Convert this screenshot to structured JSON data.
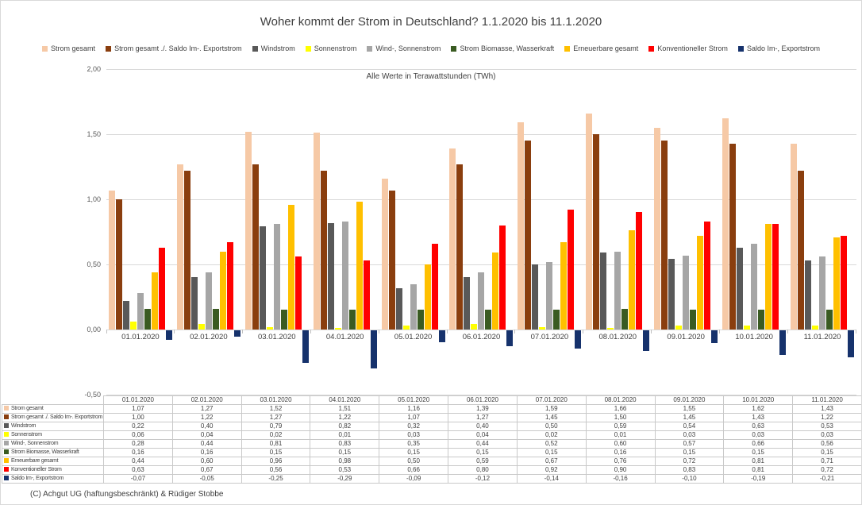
{
  "title": "Woher kommt der Strom in Deutschland? 1.1.2020 bis 11.1.2020",
  "subtitle": "Alle Werte in Terawattstunden (TWh)",
  "footer": "(C) Achgut UG (haftungsbeschränkt) & Rüdiger Stobbe",
  "chart_data": {
    "type": "bar",
    "title": "Woher kommt der Strom in Deutschland? 1.1.2020 bis 11.1.2020",
    "subtitle": "Alle Werte in Terawattstunden (TWh)",
    "unit": "TWh",
    "grid": true,
    "legend_position": "top",
    "data_table_shown": true,
    "ylim": [
      -0.5,
      2.0
    ],
    "ytick_labels": [
      "2,00",
      "1,50",
      "1,00",
      "0,50",
      "0,00",
      "-0,50"
    ],
    "categories": [
      "01.01.2020",
      "02.01.2020",
      "03.01.2020",
      "04.01.2020",
      "05.01.2020",
      "06.01.2020",
      "07.01.2020",
      "08.01.2020",
      "09.01.2020",
      "10.01.2020",
      "11.01.2020"
    ],
    "series": [
      {
        "name": "Strom gesamt",
        "color": "#F6C9A6",
        "values": [
          1.07,
          1.27,
          1.52,
          1.51,
          1.16,
          1.39,
          1.59,
          1.66,
          1.55,
          1.62,
          1.43
        ]
      },
      {
        "name": "Strom gesamt ./. Saldo Im-. Exportstrom",
        "color": "#8A3E0E",
        "values": [
          1.0,
          1.22,
          1.27,
          1.22,
          1.07,
          1.27,
          1.45,
          1.5,
          1.45,
          1.43,
          1.22
        ]
      },
      {
        "name": "Windstrom",
        "color": "#595959",
        "values": [
          0.22,
          0.4,
          0.79,
          0.82,
          0.32,
          0.4,
          0.5,
          0.59,
          0.54,
          0.63,
          0.53
        ]
      },
      {
        "name": "Sonnenstrom",
        "color": "#FFFF00",
        "values": [
          0.06,
          0.04,
          0.02,
          0.01,
          0.03,
          0.04,
          0.02,
          0.01,
          0.03,
          0.03,
          0.03
        ]
      },
      {
        "name": "Wind-, Sonnenstrom",
        "color": "#A6A6A6",
        "values": [
          0.28,
          0.44,
          0.81,
          0.83,
          0.35,
          0.44,
          0.52,
          0.6,
          0.57,
          0.66,
          0.56
        ]
      },
      {
        "name": "Strom Biomasse, Wasserkraft",
        "color": "#3A5B22",
        "values": [
          0.16,
          0.16,
          0.15,
          0.15,
          0.15,
          0.15,
          0.15,
          0.16,
          0.15,
          0.15,
          0.15
        ]
      },
      {
        "name": "Erneuerbare gesamt",
        "color": "#FFC000",
        "values": [
          0.44,
          0.6,
          0.96,
          0.98,
          0.5,
          0.59,
          0.67,
          0.76,
          0.72,
          0.81,
          0.71
        ]
      },
      {
        "name": "Konventioneller Strom",
        "color": "#FF0000",
        "values": [
          0.63,
          0.67,
          0.56,
          0.53,
          0.66,
          0.8,
          0.92,
          0.9,
          0.83,
          0.81,
          0.72
        ]
      },
      {
        "name": "Saldo Im-, Exportstrom",
        "color": "#16326C",
        "values": [
          -0.07,
          -0.05,
          -0.25,
          -0.29,
          -0.09,
          -0.12,
          -0.14,
          -0.16,
          -0.1,
          -0.19,
          -0.21
        ]
      }
    ]
  }
}
